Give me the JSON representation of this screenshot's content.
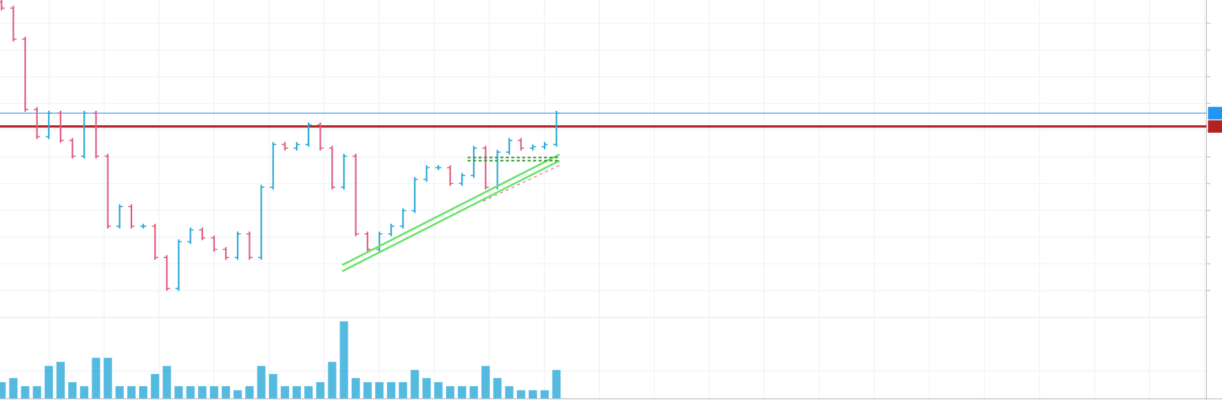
{
  "chart_data": {
    "type": "ohlc",
    "ylim": [
      0,
      11.87
    ],
    "yticks": [
      1,
      2,
      3,
      4,
      5,
      6,
      7,
      8,
      9,
      10,
      11
    ],
    "grid": true,
    "up_color": "#29a9d8",
    "down_color": "#e05c7f",
    "open": [
      11.8,
      11.57,
      10.41,
      7.78,
      6.76,
      7.64,
      6.62,
      6.03,
      7.64,
      6.03,
      3.41,
      4.14,
      3.41,
      3.41,
      2.24,
      1.08,
      2.83,
      3.27,
      2.97,
      2.54,
      2.24,
      3.12,
      2.24,
      4.87,
      6.47,
      6.33,
      6.47,
      7.2,
      6.33,
      4.87,
      6.03,
      3.12,
      2.54,
      3.12,
      3.41,
      3.99,
      5.16,
      5.6,
      5.6,
      5.01,
      5.31,
      6.33,
      4.87,
      6.18,
      6.62,
      6.33,
      6.38,
      6.47
    ],
    "close": [
      11.57,
      10.41,
      7.78,
      6.76,
      7.64,
      6.62,
      6.03,
      7.64,
      6.03,
      3.41,
      4.14,
      3.41,
      3.41,
      2.24,
      1.08,
      2.83,
      3.27,
      2.97,
      2.54,
      2.24,
      3.12,
      2.24,
      4.87,
      6.47,
      6.33,
      6.47,
      7.2,
      6.33,
      4.87,
      6.03,
      3.12,
      2.54,
      3.12,
      3.41,
      3.99,
      5.16,
      5.6,
      5.6,
      5.01,
      5.31,
      6.33,
      4.87,
      6.18,
      6.62,
      6.33,
      6.38,
      6.47,
      7.64
    ],
    "volume": {
      "color": "#29a9d8",
      "ylim": [
        0,
        100
      ],
      "values": [
        20,
        25,
        15,
        15,
        40,
        45,
        20,
        15,
        50,
        50,
        15,
        15,
        15,
        30,
        40,
        15,
        15,
        15,
        15,
        15,
        10,
        15,
        40,
        30,
        15,
        15,
        15,
        20,
        45,
        95,
        25,
        20,
        20,
        20,
        20,
        35,
        25,
        20,
        15,
        15,
        15,
        40,
        25,
        15,
        10,
        10,
        10,
        35
      ]
    },
    "levels": [
      {
        "color": "#2196f3",
        "value": 7.64
      },
      {
        "color": "#b22222",
        "value": 7.14
      }
    ]
  }
}
